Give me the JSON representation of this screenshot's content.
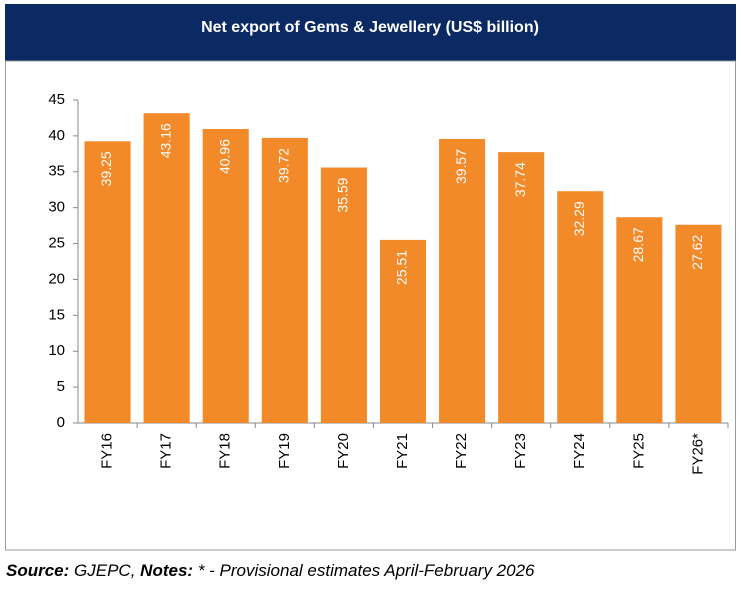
{
  "chart_data": {
    "type": "bar",
    "title": "Net export of Gems & Jewellery (US$ billion)",
    "categories": [
      "FY16",
      "FY17",
      "FY18",
      "FY19",
      "FY20",
      "FY21",
      "FY22",
      "FY23",
      "FY24",
      "FY25",
      "FY26*"
    ],
    "values": [
      39.25,
      43.16,
      40.96,
      39.72,
      35.59,
      25.51,
      39.57,
      37.74,
      32.29,
      28.67,
      27.62
    ],
    "color": "#f28a2a",
    "ylim": [
      0,
      45
    ],
    "yticks": [
      0,
      5,
      10,
      15,
      20,
      25,
      30,
      35,
      40,
      45
    ],
    "grid": false
  },
  "footer": {
    "source_label": "Source:",
    "source": "GJEPC,",
    "notes_label": "Notes:",
    "notes": "* - Provisional estimates April-February 2026"
  }
}
